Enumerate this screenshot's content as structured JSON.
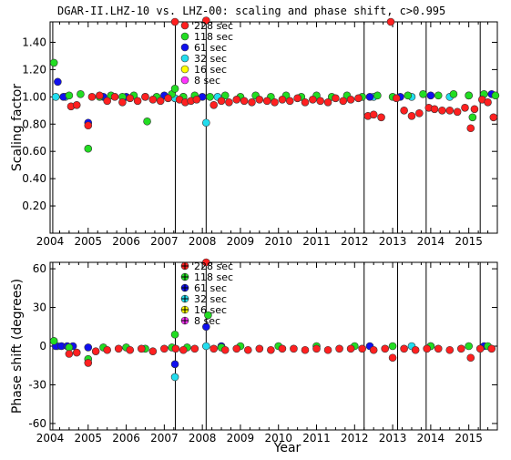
{
  "title": "DGAR-II.LHZ-10 vs. LHZ-00: scaling and phase shift, c>0.995",
  "colors": {
    "228": "#ff2020",
    "118": "#22dd22",
    "61": "#1010ee",
    "32": "#22ddee",
    "16": "#ffff00",
    "8": "#ff33ff"
  },
  "legend": [
    {
      "key": "228",
      "label": "228 sec"
    },
    {
      "key": "118",
      "label": "118 sec"
    },
    {
      "key": "61",
      "label": "61 sec"
    },
    {
      "key": "32",
      "label": "32 sec"
    },
    {
      "key": "16",
      "label": "16 sec"
    },
    {
      "key": "8",
      "label": "8 sec"
    }
  ],
  "chart_data": [
    {
      "type": "scatter",
      "ylabel": "Scaling factor",
      "xlim": [
        2004.0,
        2015.75
      ],
      "ylim": [
        0.0,
        1.55
      ],
      "yticks": [
        "0.20",
        "0.40",
        "0.60",
        "0.80",
        "1.00",
        "1.20",
        "1.40"
      ],
      "xticks": [
        "2004",
        "2005",
        "2006",
        "2007",
        "2008",
        "2009",
        "2010",
        "2011",
        "2012",
        "2013",
        "2014",
        "2015"
      ],
      "vlines": [
        2004.07,
        2007.29,
        2008.1,
        2012.25,
        2013.13,
        2013.88,
        2015.3
      ],
      "series": [
        {
          "key": "228",
          "label": "228 sec",
          "points": [
            [
              2004.55,
              0.93
            ],
            [
              2004.7,
              0.94
            ],
            [
              2005.0,
              0.79
            ],
            [
              2005.1,
              1.0
            ],
            [
              2005.3,
              1.01
            ],
            [
              2005.5,
              0.97
            ],
            [
              2005.7,
              1.0
            ],
            [
              2005.9,
              0.96
            ],
            [
              2006.1,
              0.99
            ],
            [
              2006.3,
              0.97
            ],
            [
              2006.5,
              1.0
            ],
            [
              2006.7,
              0.98
            ],
            [
              2006.9,
              0.97
            ],
            [
              2007.1,
              0.99
            ],
            [
              2007.28,
              1.55
            ],
            [
              2007.4,
              0.98
            ],
            [
              2007.55,
              0.96
            ],
            [
              2007.7,
              0.97
            ],
            [
              2007.85,
              0.98
            ],
            [
              2008.1,
              1.56
            ],
            [
              2008.3,
              0.94
            ],
            [
              2008.5,
              0.97
            ],
            [
              2008.7,
              0.96
            ],
            [
              2008.9,
              0.98
            ],
            [
              2009.1,
              0.97
            ],
            [
              2009.3,
              0.96
            ],
            [
              2009.5,
              0.98
            ],
            [
              2009.7,
              0.97
            ],
            [
              2009.9,
              0.96
            ],
            [
              2010.1,
              0.98
            ],
            [
              2010.3,
              0.97
            ],
            [
              2010.5,
              0.99
            ],
            [
              2010.7,
              0.96
            ],
            [
              2010.9,
              0.98
            ],
            [
              2011.1,
              0.97
            ],
            [
              2011.3,
              0.96
            ],
            [
              2011.5,
              0.99
            ],
            [
              2011.7,
              0.97
            ],
            [
              2011.9,
              0.98
            ],
            [
              2012.1,
              0.99
            ],
            [
              2012.35,
              0.86
            ],
            [
              2012.5,
              0.87
            ],
            [
              2012.7,
              0.85
            ],
            [
              2012.95,
              1.55
            ],
            [
              2013.1,
              0.99
            ],
            [
              2013.3,
              0.9
            ],
            [
              2013.5,
              0.86
            ],
            [
              2013.7,
              0.88
            ],
            [
              2013.95,
              0.92
            ],
            [
              2014.1,
              0.91
            ],
            [
              2014.3,
              0.9
            ],
            [
              2014.5,
              0.9
            ],
            [
              2014.7,
              0.89
            ],
            [
              2014.9,
              0.92
            ],
            [
              2015.05,
              0.77
            ],
            [
              2015.15,
              0.91
            ],
            [
              2015.35,
              0.98
            ],
            [
              2015.5,
              0.96
            ],
            [
              2015.65,
              0.85
            ]
          ]
        },
        {
          "key": "118",
          "label": "118 sec",
          "points": [
            [
              2004.1,
              1.25
            ],
            [
              2004.5,
              1.01
            ],
            [
              2004.8,
              1.02
            ],
            [
              2005.0,
              0.62
            ],
            [
              2005.3,
              1.0
            ],
            [
              2005.6,
              1.01
            ],
            [
              2005.9,
              1.0
            ],
            [
              2006.2,
              1.01
            ],
            [
              2006.55,
              0.82
            ],
            [
              2006.8,
              1.0
            ],
            [
              2007.2,
              1.02
            ],
            [
              2007.28,
              1.06
            ],
            [
              2007.5,
              1.0
            ],
            [
              2007.8,
              1.01
            ],
            [
              2008.2,
              1.0
            ],
            [
              2008.6,
              1.01
            ],
            [
              2009.0,
              1.0
            ],
            [
              2009.4,
              1.01
            ],
            [
              2009.8,
              1.0
            ],
            [
              2010.2,
              1.01
            ],
            [
              2010.6,
              1.0
            ],
            [
              2011.0,
              1.01
            ],
            [
              2011.4,
              1.0
            ],
            [
              2011.8,
              1.01
            ],
            [
              2012.2,
              1.0
            ],
            [
              2012.6,
              1.01
            ],
            [
              2013.0,
              1.0
            ],
            [
              2013.4,
              1.01
            ],
            [
              2013.8,
              1.02
            ],
            [
              2014.2,
              1.01
            ],
            [
              2014.6,
              1.02
            ],
            [
              2015.0,
              1.01
            ],
            [
              2015.1,
              0.85
            ],
            [
              2015.4,
              1.02
            ],
            [
              2015.7,
              1.01
            ]
          ]
        },
        {
          "key": "61",
          "label": "61 sec",
          "points": [
            [
              2004.2,
              1.11
            ],
            [
              2004.35,
              1.0
            ],
            [
              2005.0,
              0.81
            ],
            [
              2005.4,
              1.0
            ],
            [
              2006.0,
              1.0
            ],
            [
              2006.5,
              1.0
            ],
            [
              2007.0,
              1.01
            ],
            [
              2007.5,
              1.0
            ],
            [
              2008.0,
              1.0
            ],
            [
              2012.4,
              1.0
            ],
            [
              2013.2,
              1.0
            ],
            [
              2014.0,
              1.01
            ],
            [
              2015.0,
              1.01
            ],
            [
              2015.6,
              1.02
            ]
          ]
        },
        {
          "key": "32",
          "label": "32 sec",
          "points": [
            [
              2004.15,
              1.0
            ],
            [
              2004.4,
              1.0
            ],
            [
              2007.28,
              0.99
            ],
            [
              2008.1,
              0.81
            ],
            [
              2008.4,
              1.0
            ],
            [
              2012.5,
              1.0
            ],
            [
              2013.5,
              1.0
            ],
            [
              2014.5,
              1.0
            ]
          ]
        },
        {
          "key": "16",
          "label": "16 sec",
          "points": []
        },
        {
          "key": "8",
          "label": "8 sec",
          "points": []
        }
      ]
    },
    {
      "type": "scatter",
      "ylabel": "Phase shift (degrees)",
      "xlabel": "Year",
      "xlim": [
        2004.0,
        2015.75
      ],
      "ylim": [
        -65,
        65
      ],
      "yticks": [
        "-60",
        "-30",
        "0",
        "30",
        "60"
      ],
      "xticks": [
        "2004",
        "2005",
        "2006",
        "2007",
        "2008",
        "2009",
        "2010",
        "2011",
        "2012",
        "2013",
        "2014",
        "2015"
      ],
      "vlines": [
        2004.07,
        2007.29,
        2008.1,
        2012.25,
        2013.13,
        2013.88,
        2015.3
      ],
      "series": [
        {
          "key": "228",
          "label": "228 sec",
          "points": [
            [
              2004.5,
              -6
            ],
            [
              2004.7,
              -5
            ],
            [
              2005.0,
              -13
            ],
            [
              2005.2,
              -4
            ],
            [
              2005.5,
              -3
            ],
            [
              2005.8,
              -2
            ],
            [
              2006.1,
              -3
            ],
            [
              2006.4,
              -2
            ],
            [
              2006.7,
              -4
            ],
            [
              2007.0,
              -2
            ],
            [
              2007.3,
              -2
            ],
            [
              2007.5,
              -3
            ],
            [
              2007.8,
              -2
            ],
            [
              2008.1,
              65
            ],
            [
              2008.3,
              -2
            ],
            [
              2008.6,
              -3
            ],
            [
              2008.9,
              -2
            ],
            [
              2009.2,
              -3
            ],
            [
              2009.5,
              -2
            ],
            [
              2009.8,
              -3
            ],
            [
              2010.1,
              -2
            ],
            [
              2010.4,
              -2
            ],
            [
              2010.7,
              -3
            ],
            [
              2011.0,
              -2
            ],
            [
              2011.3,
              -3
            ],
            [
              2011.6,
              -2
            ],
            [
              2011.9,
              -2
            ],
            [
              2012.2,
              -2
            ],
            [
              2012.5,
              -3
            ],
            [
              2012.8,
              -2
            ],
            [
              2013.0,
              -9
            ],
            [
              2013.3,
              -2
            ],
            [
              2013.6,
              -3
            ],
            [
              2013.9,
              -2
            ],
            [
              2014.2,
              -2
            ],
            [
              2014.5,
              -3
            ],
            [
              2014.8,
              -2
            ],
            [
              2015.05,
              -9
            ],
            [
              2015.3,
              -2
            ],
            [
              2015.6,
              -2
            ]
          ]
        },
        {
          "key": "118",
          "label": "118 sec",
          "points": [
            [
              2004.1,
              4
            ],
            [
              2004.5,
              -1
            ],
            [
              2005.0,
              -10
            ],
            [
              2005.4,
              -1
            ],
            [
              2006.0,
              -1
            ],
            [
              2006.5,
              -2
            ],
            [
              2007.2,
              -1
            ],
            [
              2007.28,
              9
            ],
            [
              2007.6,
              -1
            ],
            [
              2008.15,
              24
            ],
            [
              2008.5,
              -1
            ],
            [
              2009.0,
              0
            ],
            [
              2010.0,
              0
            ],
            [
              2011.0,
              0
            ],
            [
              2012.0,
              0
            ],
            [
              2013.0,
              0
            ],
            [
              2014.0,
              0
            ],
            [
              2015.0,
              0
            ],
            [
              2015.5,
              0
            ]
          ]
        },
        {
          "key": "61",
          "label": "61 sec",
          "points": [
            [
              2004.15,
              0
            ],
            [
              2004.3,
              0
            ],
            [
              2004.45,
              0
            ],
            [
              2004.6,
              0
            ],
            [
              2005.0,
              -1
            ],
            [
              2007.28,
              -14
            ],
            [
              2008.1,
              15
            ],
            [
              2008.5,
              0
            ],
            [
              2012.4,
              0
            ],
            [
              2014.0,
              0
            ],
            [
              2015.4,
              0
            ]
          ]
        },
        {
          "key": "32",
          "label": "32 sec",
          "points": [
            [
              2004.2,
              0
            ],
            [
              2007.28,
              -24
            ],
            [
              2008.1,
              0
            ],
            [
              2013.5,
              0
            ]
          ]
        },
        {
          "key": "16",
          "label": "16 sec",
          "points": []
        },
        {
          "key": "8",
          "label": "8 sec",
          "points": []
        }
      ]
    }
  ]
}
